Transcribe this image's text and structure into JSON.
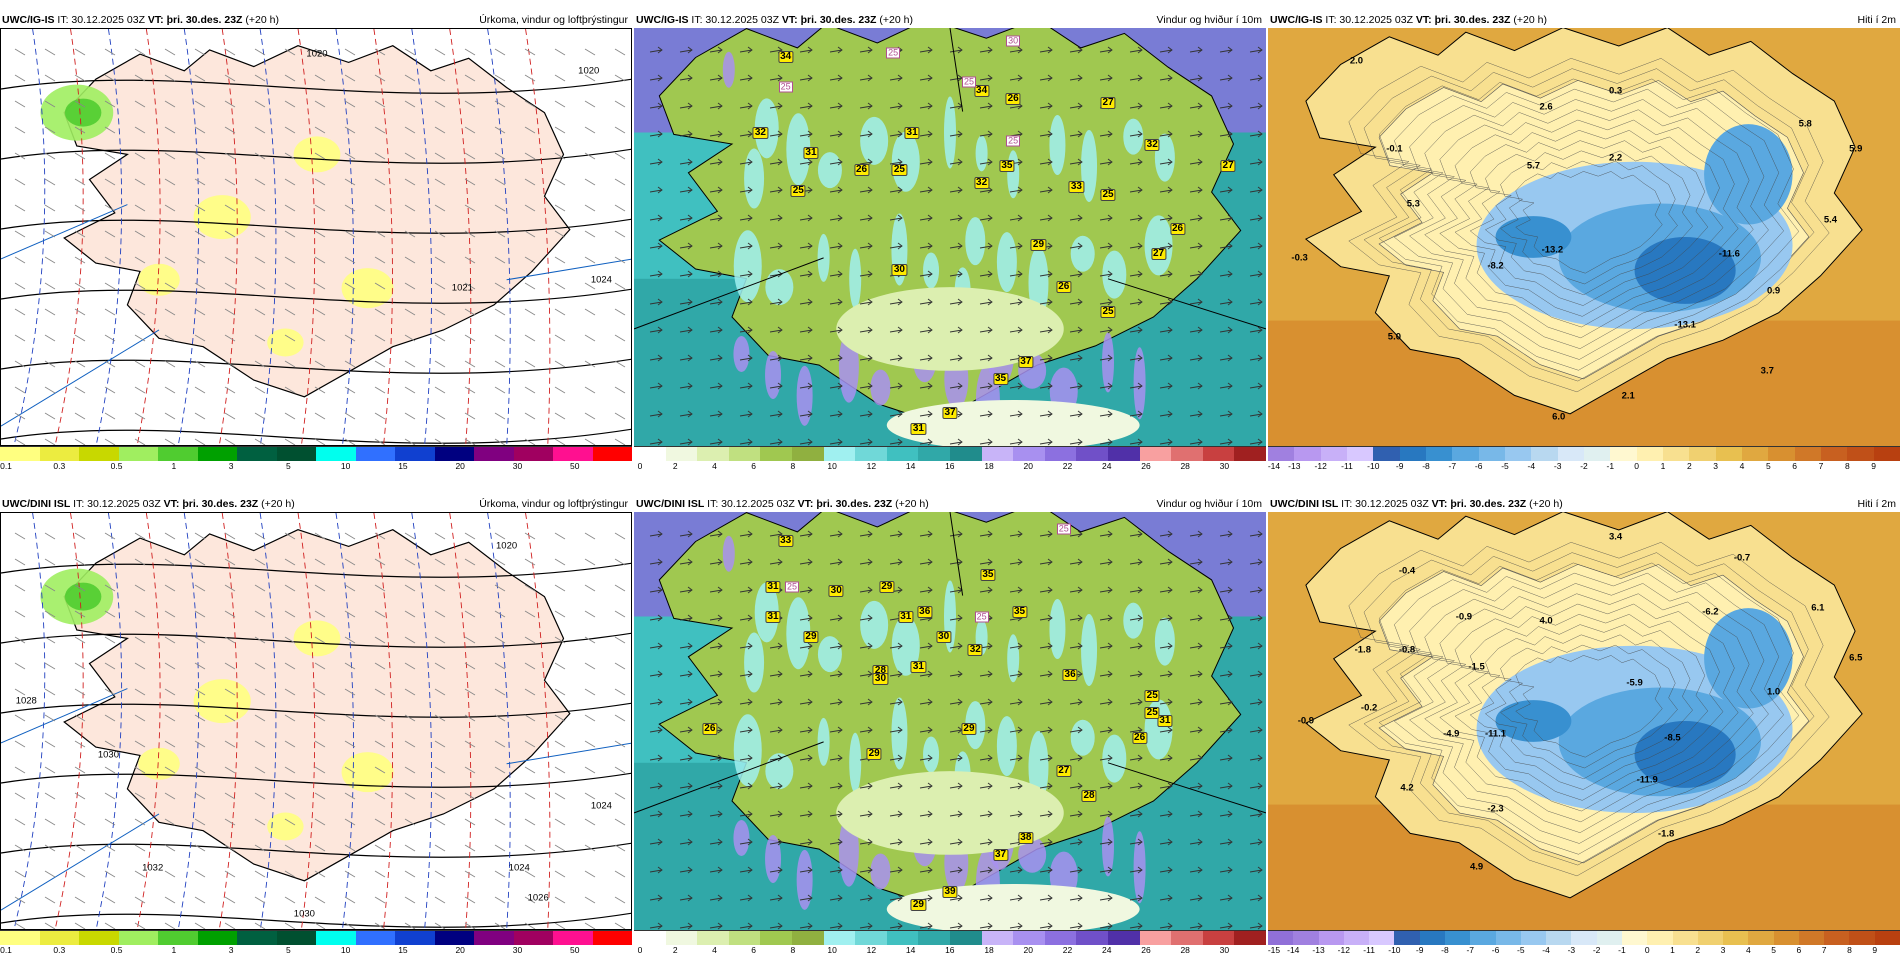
{
  "panels": [
    {
      "id": "p1",
      "header_left": "UWC/IG-IS",
      "header_it": "IT: 30.12.2025 03Z",
      "header_vt_label": "VT:",
      "header_vt": "þri. 30.des. 23Z",
      "header_lead": "(+20 h)",
      "header_right": "Úrkoma, vindur og loftþrýstingur",
      "colorbar": {
        "colors": [
          "#ffff80",
          "#ecec40",
          "#c8d800",
          "#a0ee60",
          "#50cc30",
          "#00a000",
          "#006040",
          "#005030",
          "#00ffee",
          "#3070ff",
          "#1040d0",
          "#000080",
          "#800080",
          "#a00060",
          "#ff1090",
          "#ff0000"
        ],
        "ticks": [
          "0.1",
          "0.3",
          "0.5",
          "1",
          "3",
          "5",
          "10",
          "15",
          "20",
          "30",
          "50"
        ]
      },
      "isobars": [
        "1020",
        "1020",
        "1024",
        "1021"
      ]
    },
    {
      "id": "p2",
      "header_left": "UWC/IG-IS",
      "header_it": "IT: 30.12.2025 03Z",
      "header_vt_label": "VT:",
      "header_vt": "þri. 30.des. 23Z",
      "header_lead": "(+20 h)",
      "header_right": "Vindur og hviður í 10m",
      "colorbar": {
        "colors": [
          "#ffffff",
          "#f0f8e0",
          "#dcefb0",
          "#c0e080",
          "#a0c850",
          "#90b040",
          "#a0f0f0",
          "#70d8d8",
          "#40c0c0",
          "#30a8a8",
          "#208c8c",
          "#c8b4f8",
          "#a890f0",
          "#8c70e0",
          "#7050c8",
          "#5030a8",
          "#f8a0a0",
          "#e07070",
          "#c84040",
          "#a02020"
        ],
        "ticks": [
          "0",
          "2",
          "4",
          "6",
          "8",
          "10",
          "12",
          "14",
          "16",
          "18",
          "20",
          "22",
          "24",
          "26",
          "28",
          "30"
        ]
      },
      "gusts": [
        "34",
        "32",
        "31",
        "25",
        "26",
        "25",
        "31",
        "34",
        "26",
        "27",
        "32",
        "27",
        "35",
        "32",
        "33",
        "25",
        "30",
        "29",
        "26",
        "27",
        "26",
        "25",
        "37",
        "35",
        "31",
        "37"
      ],
      "pink_labels": [
        "25",
        "30",
        "25",
        "25",
        "25"
      ]
    },
    {
      "id": "p3",
      "header_left": "UWC/IG-IS",
      "header_it": "IT: 30.12.2025 03Z",
      "header_vt_label": "VT:",
      "header_vt": "þri. 30.des. 23Z",
      "header_lead": "(+20 h)",
      "header_right": "Hiti í 2m",
      "colorbar": {
        "colors": [
          "#a080e0",
          "#b898f0",
          "#c8b0f8",
          "#d8c8ff",
          "#3060b0",
          "#2878c0",
          "#3890d0",
          "#5aa8e0",
          "#78b8e8",
          "#98c8f0",
          "#b8d8f0",
          "#d8e8f8",
          "#e0f0f0",
          "#fff8d0",
          "#fff0b0",
          "#f8e090",
          "#f0d070",
          "#e8c050",
          "#e0a840",
          "#d89030",
          "#d07828",
          "#c86020",
          "#c05018",
          "#b84010"
        ],
        "ticks": [
          "-14",
          "-13",
          "-12",
          "-11",
          "-10",
          "-9",
          "-8",
          "-7",
          "-6",
          "-5",
          "-4",
          "-3",
          "-2",
          "-1",
          "0",
          "1",
          "2",
          "3",
          "4",
          "5",
          "6",
          "7",
          "8",
          "9"
        ]
      },
      "temps": [
        "2.0",
        "-0.1",
        "0.3",
        "2.6",
        "5.8",
        "5.9",
        "5.7",
        "2.2",
        "5.3",
        "5.4",
        "-0.3",
        "-13.2",
        "-8.2",
        "-11.6",
        "0.9",
        "-13.1",
        "5.0",
        "3.7",
        "2.1",
        "6.0"
      ]
    },
    {
      "id": "p4",
      "header_left": "UWC/DINI ISL",
      "header_it": "IT: 30.12.2025 03Z",
      "header_vt_label": "VT:",
      "header_vt": "þri. 30.des. 23Z",
      "header_lead": "(+20 h)",
      "header_right": "Úrkoma, vindur og loftþrýstingur",
      "colorbar": {
        "colors": [
          "#ffff80",
          "#ecec40",
          "#c8d800",
          "#a0ee60",
          "#50cc30",
          "#00a000",
          "#006040",
          "#005030",
          "#00ffee",
          "#3070ff",
          "#1040d0",
          "#000080",
          "#800080",
          "#a00060",
          "#ff1090",
          "#ff0000"
        ],
        "ticks": [
          "0.1",
          "0.3",
          "0.5",
          "1",
          "3",
          "5",
          "10",
          "15",
          "20",
          "30",
          "50"
        ]
      },
      "isobars": [
        "1020",
        "1028",
        "1030",
        "1024",
        "1026",
        "1032",
        "1030",
        "1024"
      ]
    },
    {
      "id": "p5",
      "header_left": "UWC/DINI ISL",
      "header_it": "IT: 30.12.2025 03Z",
      "header_vt_label": "VT:",
      "header_vt": "þri. 30.des. 23Z",
      "header_lead": "(+20 h)",
      "header_right": "Vindur og hviður í 10m",
      "colorbar": {
        "colors": [
          "#ffffff",
          "#f0f8e0",
          "#dcefb0",
          "#c0e080",
          "#a0c850",
          "#90b040",
          "#a0f0f0",
          "#70d8d8",
          "#40c0c0",
          "#30a8a8",
          "#208c8c",
          "#c8b4f8",
          "#a890f0",
          "#8c70e0",
          "#7050c8",
          "#5030a8",
          "#f8a0a0",
          "#e07070",
          "#c84040",
          "#a02020"
        ],
        "ticks": [
          "0",
          "2",
          "4",
          "6",
          "8",
          "10",
          "12",
          "14",
          "16",
          "18",
          "20",
          "22",
          "24",
          "26",
          "28",
          "30"
        ]
      },
      "gusts": [
        "33",
        "31",
        "31",
        "30",
        "29",
        "29",
        "31",
        "35",
        "35",
        "36",
        "32",
        "30",
        "28",
        "31",
        "30",
        "36",
        "25",
        "31",
        "25",
        "26",
        "27",
        "29",
        "26",
        "29",
        "28",
        "38",
        "37",
        "39",
        "29"
      ],
      "pink_labels": [
        "25",
        "25",
        "25"
      ]
    },
    {
      "id": "p6",
      "header_left": "UWC/DINI ISL",
      "header_it": "IT: 30.12.2025 03Z",
      "header_vt_label": "VT:",
      "header_vt": "þri. 30.des. 23Z",
      "header_lead": "(+20 h)",
      "header_right": "Hiti í 2m",
      "colorbar": {
        "colors": [
          "#9070d8",
          "#a080e0",
          "#b898f0",
          "#c8b0f8",
          "#d8c8ff",
          "#3060b0",
          "#2878c0",
          "#3890d0",
          "#5aa8e0",
          "#78b8e8",
          "#98c8f0",
          "#b8d8f0",
          "#d8e8f8",
          "#e0f0f0",
          "#fff8d0",
          "#fff0b0",
          "#f8e090",
          "#f0d070",
          "#e8c050",
          "#e0a840",
          "#d89030",
          "#d07828",
          "#c86020",
          "#c05018",
          "#b84010"
        ],
        "ticks": [
          "-15",
          "-14",
          "-13",
          "-12",
          "-11",
          "-10",
          "-9",
          "-8",
          "-7",
          "-6",
          "-5",
          "-4",
          "-3",
          "-2",
          "-1",
          "0",
          "1",
          "2",
          "3",
          "4",
          "5",
          "6",
          "7",
          "8",
          "9"
        ]
      },
      "temps": [
        "3.4",
        "-0.4",
        "-0.7",
        "-0.9",
        "4.0",
        "-6.2",
        "6.1",
        "-1.8",
        "-0.8",
        "-1.5",
        "6.5",
        "1.0",
        "-5.9",
        "-0.2",
        "-0.9",
        "-4.9",
        "-11.1",
        "-8.5",
        "-11.9",
        "4.2",
        "-2.3",
        "-1.8",
        "4.9"
      ]
    }
  ]
}
